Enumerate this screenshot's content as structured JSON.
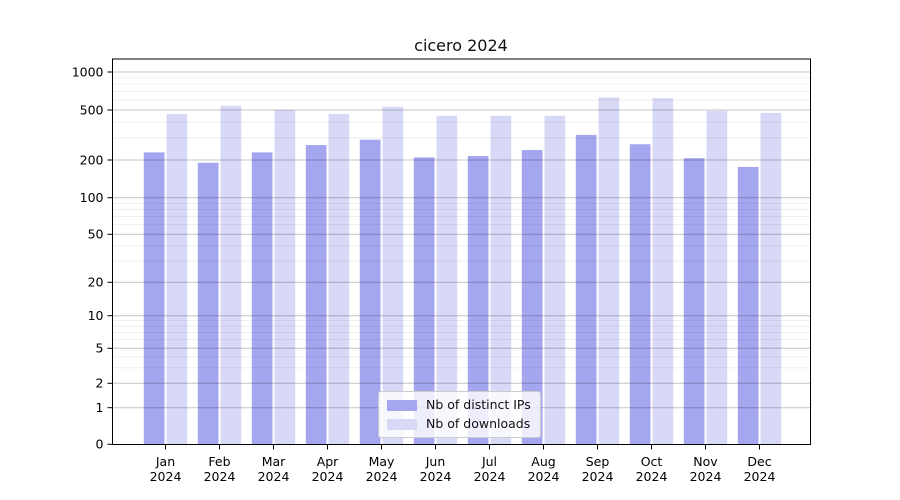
{
  "chart_data": {
    "type": "bar",
    "title": "cicero 2024",
    "year_label": "2024",
    "months": [
      "Jan",
      "Feb",
      "Mar",
      "Apr",
      "May",
      "Jun",
      "Jul",
      "Aug",
      "Sep",
      "Oct",
      "Nov",
      "Dec"
    ],
    "categories": [
      "Jan 2024",
      "Feb 2024",
      "Mar 2024",
      "Apr 2024",
      "May 2024",
      "Jun 2024",
      "Jul 2024",
      "Aug 2024",
      "Sep 2024",
      "Oct 2024",
      "Nov 2024",
      "Dec 2024"
    ],
    "series": [
      {
        "name": "Nb of distinct IPs",
        "color": "#a5a6f0",
        "values": [
          230,
          190,
          230,
          263,
          290,
          210,
          215,
          240,
          317,
          267,
          207,
          176
        ]
      },
      {
        "name": "Nb of downloads",
        "color": "#d8d9f6",
        "values": [
          465,
          540,
          500,
          465,
          530,
          450,
          450,
          450,
          630,
          620,
          492,
          474
        ]
      }
    ],
    "yscale": "symlog",
    "yticks": [
      0,
      1,
      2,
      5,
      10,
      20,
      50,
      100,
      200,
      500,
      1000
    ],
    "minor_gridline_values": [
      3,
      4,
      6,
      7,
      8,
      9,
      30,
      40,
      60,
      70,
      80,
      90,
      300,
      400,
      600,
      700,
      800,
      900
    ],
    "grid": "both",
    "legend_position": "lower-center",
    "xlabel": "",
    "ylabel": "",
    "axis_color": "#000000",
    "major_grid_color": "#c4c4c4",
    "minor_grid_color": "#ebebeb",
    "background_color": "#ffffff"
  }
}
